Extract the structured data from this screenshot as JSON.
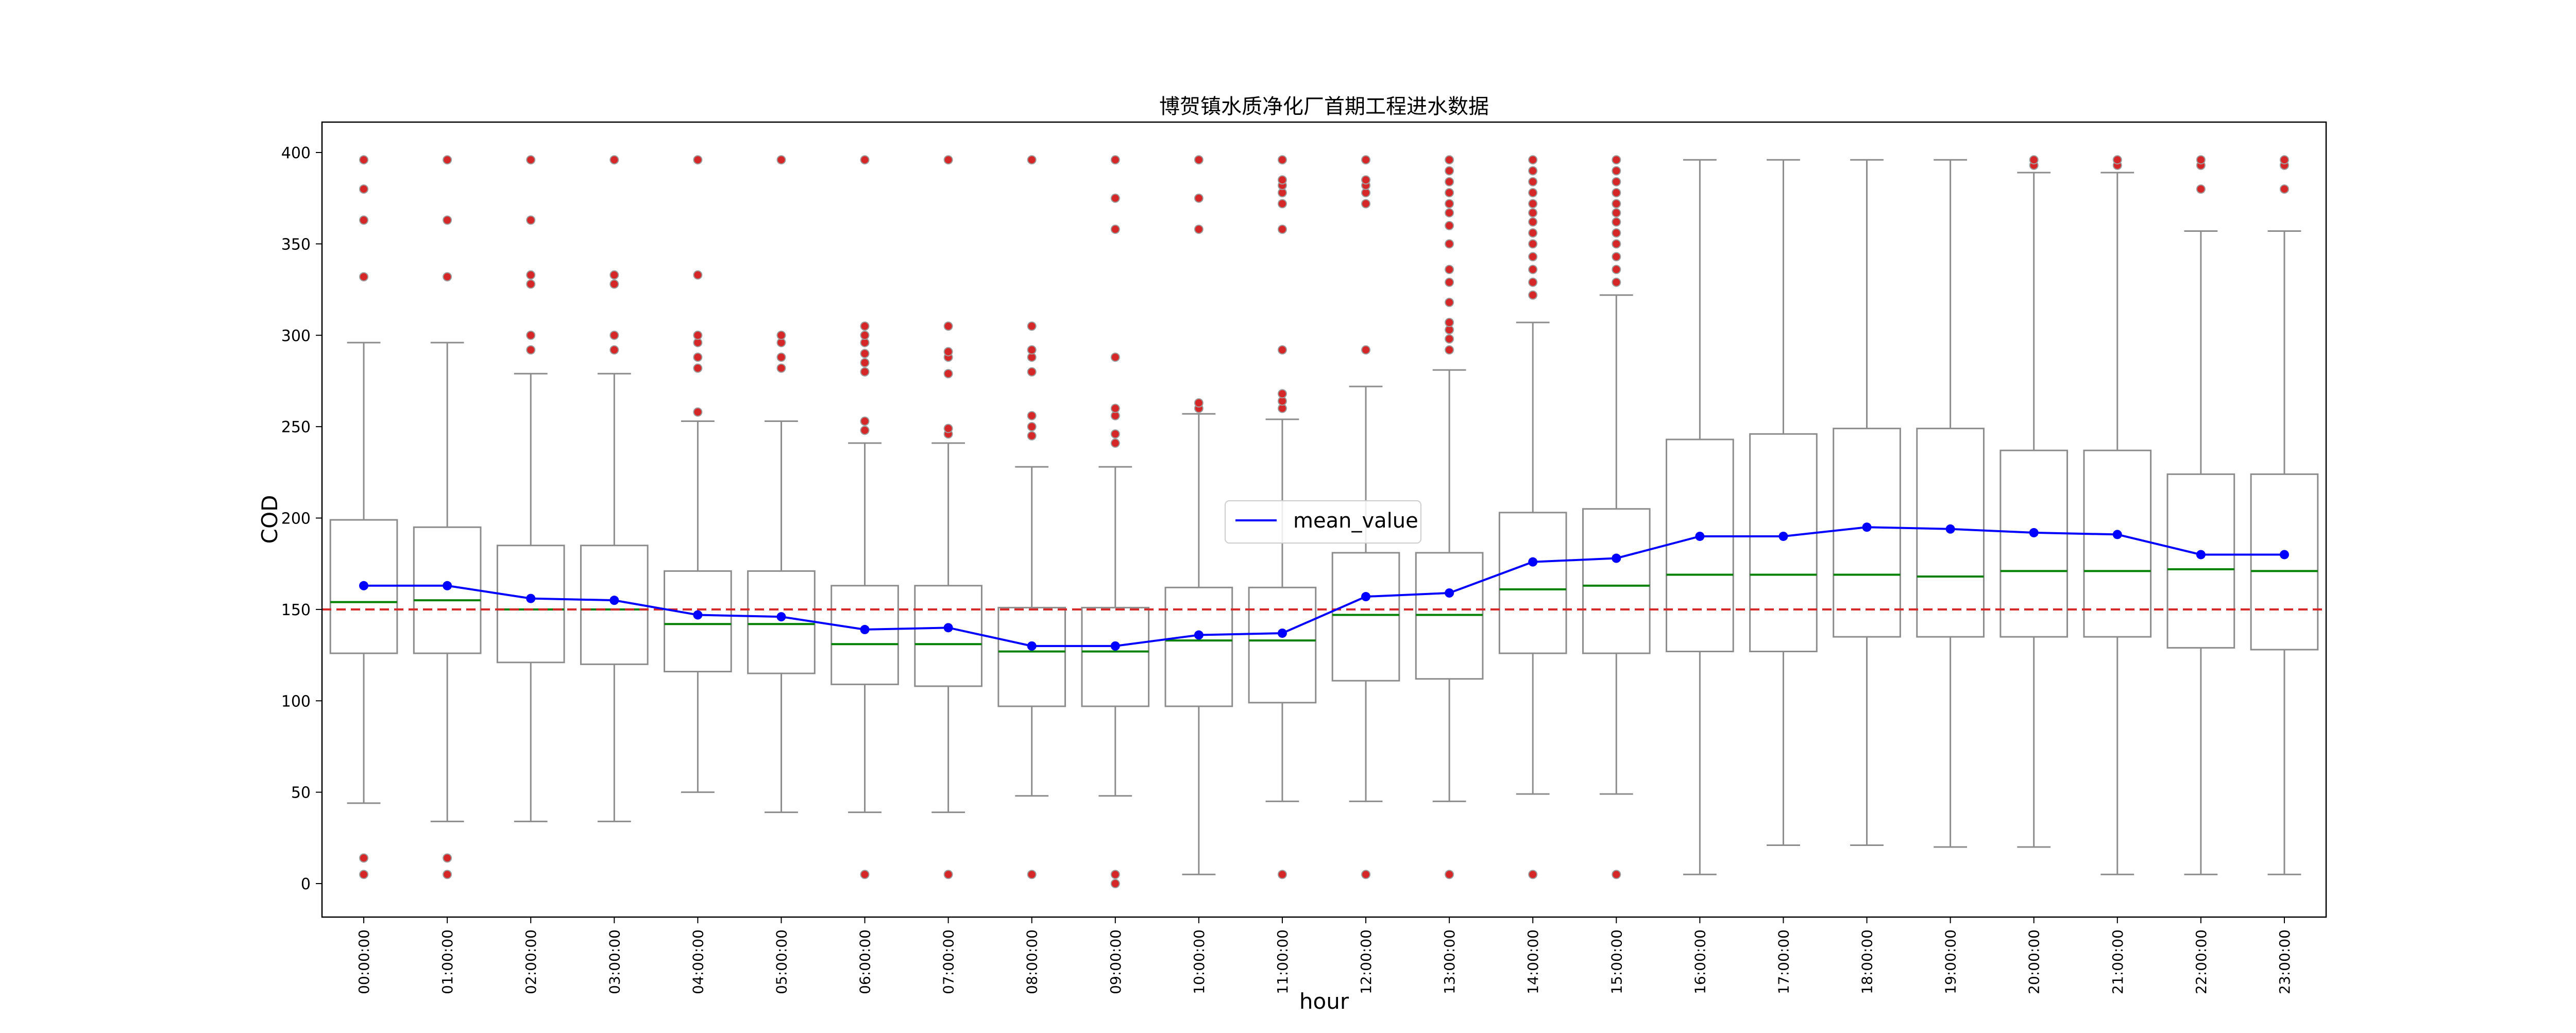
{
  "chart_data": {
    "type": "boxplot",
    "title": "博贺镇水质净化厂首期工程进水数据",
    "xlabel": "hour",
    "ylabel": "COD",
    "ylim": [
      -20,
      416
    ],
    "yticks": [
      0,
      50,
      100,
      150,
      200,
      250,
      300,
      350,
      400
    ],
    "grid": false,
    "legend": {
      "position": "center",
      "entries": [
        "mean_value"
      ]
    },
    "reference_line": {
      "y": 150
    },
    "categories": [
      "00:00:00",
      "01:00:00",
      "02:00:00",
      "03:00:00",
      "04:00:00",
      "05:00:00",
      "06:00:00",
      "07:00:00",
      "08:00:00",
      "09:00:00",
      "10:00:00",
      "11:00:00",
      "12:00:00",
      "13:00:00",
      "14:00:00",
      "15:00:00",
      "16:00:00",
      "17:00:00",
      "18:00:00",
      "19:00:00",
      "20:00:00",
      "21:00:00",
      "22:00:00",
      "23:00:00"
    ],
    "boxes": [
      {
        "whislo": 44,
        "q1": 126,
        "med": 154,
        "q3": 199,
        "whishi": 296,
        "fliers": [
          5,
          14,
          332,
          363,
          380,
          396
        ]
      },
      {
        "whislo": 34,
        "q1": 126,
        "med": 155,
        "q3": 195,
        "whishi": 296,
        "fliers": [
          5,
          14,
          332,
          363,
          396
        ]
      },
      {
        "whislo": 34,
        "q1": 121,
        "med": 150,
        "q3": 185,
        "whishi": 279,
        "fliers": [
          292,
          300,
          328,
          333,
          363,
          396
        ]
      },
      {
        "whislo": 34,
        "q1": 120,
        "med": 150,
        "q3": 185,
        "whishi": 279,
        "fliers": [
          292,
          300,
          328,
          333,
          396
        ]
      },
      {
        "whislo": 50,
        "q1": 116,
        "med": 142,
        "q3": 171,
        "whishi": 253,
        "fliers": [
          258,
          282,
          288,
          296,
          300,
          333,
          396
        ]
      },
      {
        "whislo": 39,
        "q1": 115,
        "med": 142,
        "q3": 171,
        "whishi": 253,
        "fliers": [
          282,
          288,
          296,
          300,
          396
        ]
      },
      {
        "whislo": 39,
        "q1": 109,
        "med": 131,
        "q3": 163,
        "whishi": 241,
        "fliers": [
          5,
          248,
          253,
          280,
          285,
          290,
          296,
          300,
          305,
          396
        ]
      },
      {
        "whislo": 39,
        "q1": 108,
        "med": 131,
        "q3": 163,
        "whishi": 241,
        "fliers": [
          5,
          246,
          249,
          279,
          288,
          291,
          305,
          396
        ]
      },
      {
        "whislo": 48,
        "q1": 97,
        "med": 127,
        "q3": 151,
        "whishi": 228,
        "fliers": [
          5,
          245,
          250,
          256,
          280,
          288,
          292,
          305,
          396
        ]
      },
      {
        "whislo": 48,
        "q1": 97,
        "med": 127,
        "q3": 151,
        "whishi": 228,
        "fliers": [
          0,
          5,
          241,
          246,
          256,
          260,
          288,
          358,
          375,
          396
        ]
      },
      {
        "whislo": 5,
        "q1": 97,
        "med": 133,
        "q3": 162,
        "whishi": 257,
        "fliers": [
          260,
          263,
          358,
          375,
          396
        ]
      },
      {
        "whislo": 45,
        "q1": 99,
        "med": 133,
        "q3": 162,
        "whishi": 254,
        "fliers": [
          5,
          260,
          264,
          268,
          292,
          358,
          372,
          378,
          382,
          385,
          396
        ]
      },
      {
        "whislo": 45,
        "q1": 111,
        "med": 147,
        "q3": 181,
        "whishi": 272,
        "fliers": [
          5,
          292,
          372,
          378,
          382,
          385,
          396
        ]
      },
      {
        "whislo": 45,
        "q1": 112,
        "med": 147,
        "q3": 181,
        "whishi": 281,
        "fliers": [
          5,
          292,
          298,
          303,
          307,
          318,
          329,
          336,
          350,
          360,
          367,
          372,
          378,
          384,
          390,
          396
        ]
      },
      {
        "whislo": 49,
        "q1": 126,
        "med": 161,
        "q3": 203,
        "whishi": 307,
        "fliers": [
          5,
          322,
          329,
          336,
          343,
          350,
          356,
          362,
          367,
          372,
          378,
          384,
          390,
          396
        ]
      },
      {
        "whislo": 49,
        "q1": 126,
        "med": 163,
        "q3": 205,
        "whishi": 322,
        "fliers": [
          5,
          329,
          336,
          343,
          350,
          356,
          362,
          367,
          372,
          378,
          384,
          390,
          396
        ]
      },
      {
        "whislo": 5,
        "q1": 127,
        "med": 169,
        "q3": 243,
        "whishi": 396,
        "fliers": []
      },
      {
        "whislo": 21,
        "q1": 127,
        "med": 169,
        "q3": 246,
        "whishi": 396,
        "fliers": []
      },
      {
        "whislo": 21,
        "q1": 135,
        "med": 169,
        "q3": 249,
        "whishi": 396,
        "fliers": []
      },
      {
        "whislo": 20,
        "q1": 135,
        "med": 168,
        "q3": 249,
        "whishi": 396,
        "fliers": []
      },
      {
        "whislo": 20,
        "q1": 135,
        "med": 171,
        "q3": 237,
        "whishi": 389,
        "fliers": [
          393,
          396
        ]
      },
      {
        "whislo": 5,
        "q1": 135,
        "med": 171,
        "q3": 237,
        "whishi": 389,
        "fliers": [
          393,
          396
        ]
      },
      {
        "whislo": 5,
        "q1": 129,
        "med": 172,
        "q3": 224,
        "whishi": 357,
        "fliers": [
          380,
          393,
          396
        ]
      },
      {
        "whislo": 5,
        "q1": 128,
        "med": 171,
        "q3": 224,
        "whishi": 357,
        "fliers": [
          380,
          393,
          396
        ]
      }
    ],
    "series": [
      {
        "name": "mean_value",
        "values": [
          163,
          163,
          156,
          155,
          147,
          146,
          139,
          140,
          130,
          130,
          136,
          137,
          157,
          159,
          176,
          178,
          190,
          190,
          195,
          194,
          192,
          191,
          180,
          180
        ]
      }
    ],
    "colors": {
      "box": "#8c8c8c",
      "median": "#008000",
      "mean": "#0000ff",
      "flier": "#d62728",
      "flier_edge": "#9e9e9e",
      "reference": "#d62728",
      "axes": "#000000"
    }
  }
}
